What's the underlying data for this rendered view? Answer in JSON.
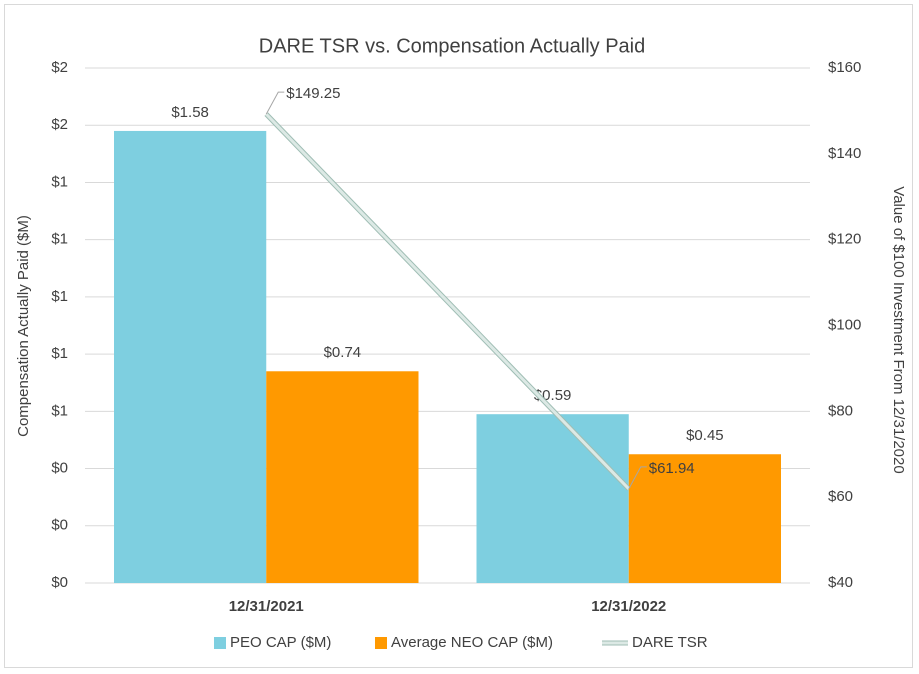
{
  "chart_data": {
    "type": "bar",
    "title": "DARE TSR vs. Compensation Actually Paid",
    "ylabel": "Compensation Actually Paid ($M)",
    "y2label": "Value of $100 Investment From 12/31/2020",
    "categories": [
      "12/31/2021",
      "12/31/2022"
    ],
    "series": [
      {
        "name": "PEO CAP ($M)",
        "type": "bar",
        "color": "#7ecfe0",
        "values": [
          1.58,
          0.59
        ],
        "value_labels": [
          "$1.58",
          "$0.59"
        ]
      },
      {
        "name": "Average NEO CAP ($M)",
        "type": "bar",
        "color": "#ff9900",
        "values": [
          0.74,
          0.45
        ],
        "value_labels": [
          "$0.74",
          "$0.45"
        ]
      },
      {
        "name": "DARE TSR",
        "type": "line",
        "axis": "y2",
        "color": "#dce9e5",
        "values": [
          149.25,
          61.94
        ],
        "value_labels": [
          "$149.25",
          "$61.94"
        ]
      }
    ],
    "ylim": [
      0,
      1.8
    ],
    "yticks": [
      {
        "value": 0,
        "label": "$0"
      },
      {
        "value": 0.2,
        "label": "$0"
      },
      {
        "value": 0.4,
        "label": "$0"
      },
      {
        "value": 0.6,
        "label": "$1"
      },
      {
        "value": 0.8,
        "label": "$1"
      },
      {
        "value": 1.0,
        "label": "$1"
      },
      {
        "value": 1.2,
        "label": "$1"
      },
      {
        "value": 1.4,
        "label": "$1"
      },
      {
        "value": 1.6,
        "label": "$2"
      },
      {
        "value": 1.8,
        "label": "$2"
      }
    ],
    "y2lim": [
      40,
      160
    ],
    "y2ticks": [
      {
        "value": 40,
        "label": "$40"
      },
      {
        "value": 60,
        "label": "$60"
      },
      {
        "value": 80,
        "label": "$80"
      },
      {
        "value": 100,
        "label": "$100"
      },
      {
        "value": 120,
        "label": "$120"
      },
      {
        "value": 140,
        "label": "$140"
      },
      {
        "value": 160,
        "label": "$160"
      }
    ],
    "grid": true,
    "legend": "bottom"
  }
}
